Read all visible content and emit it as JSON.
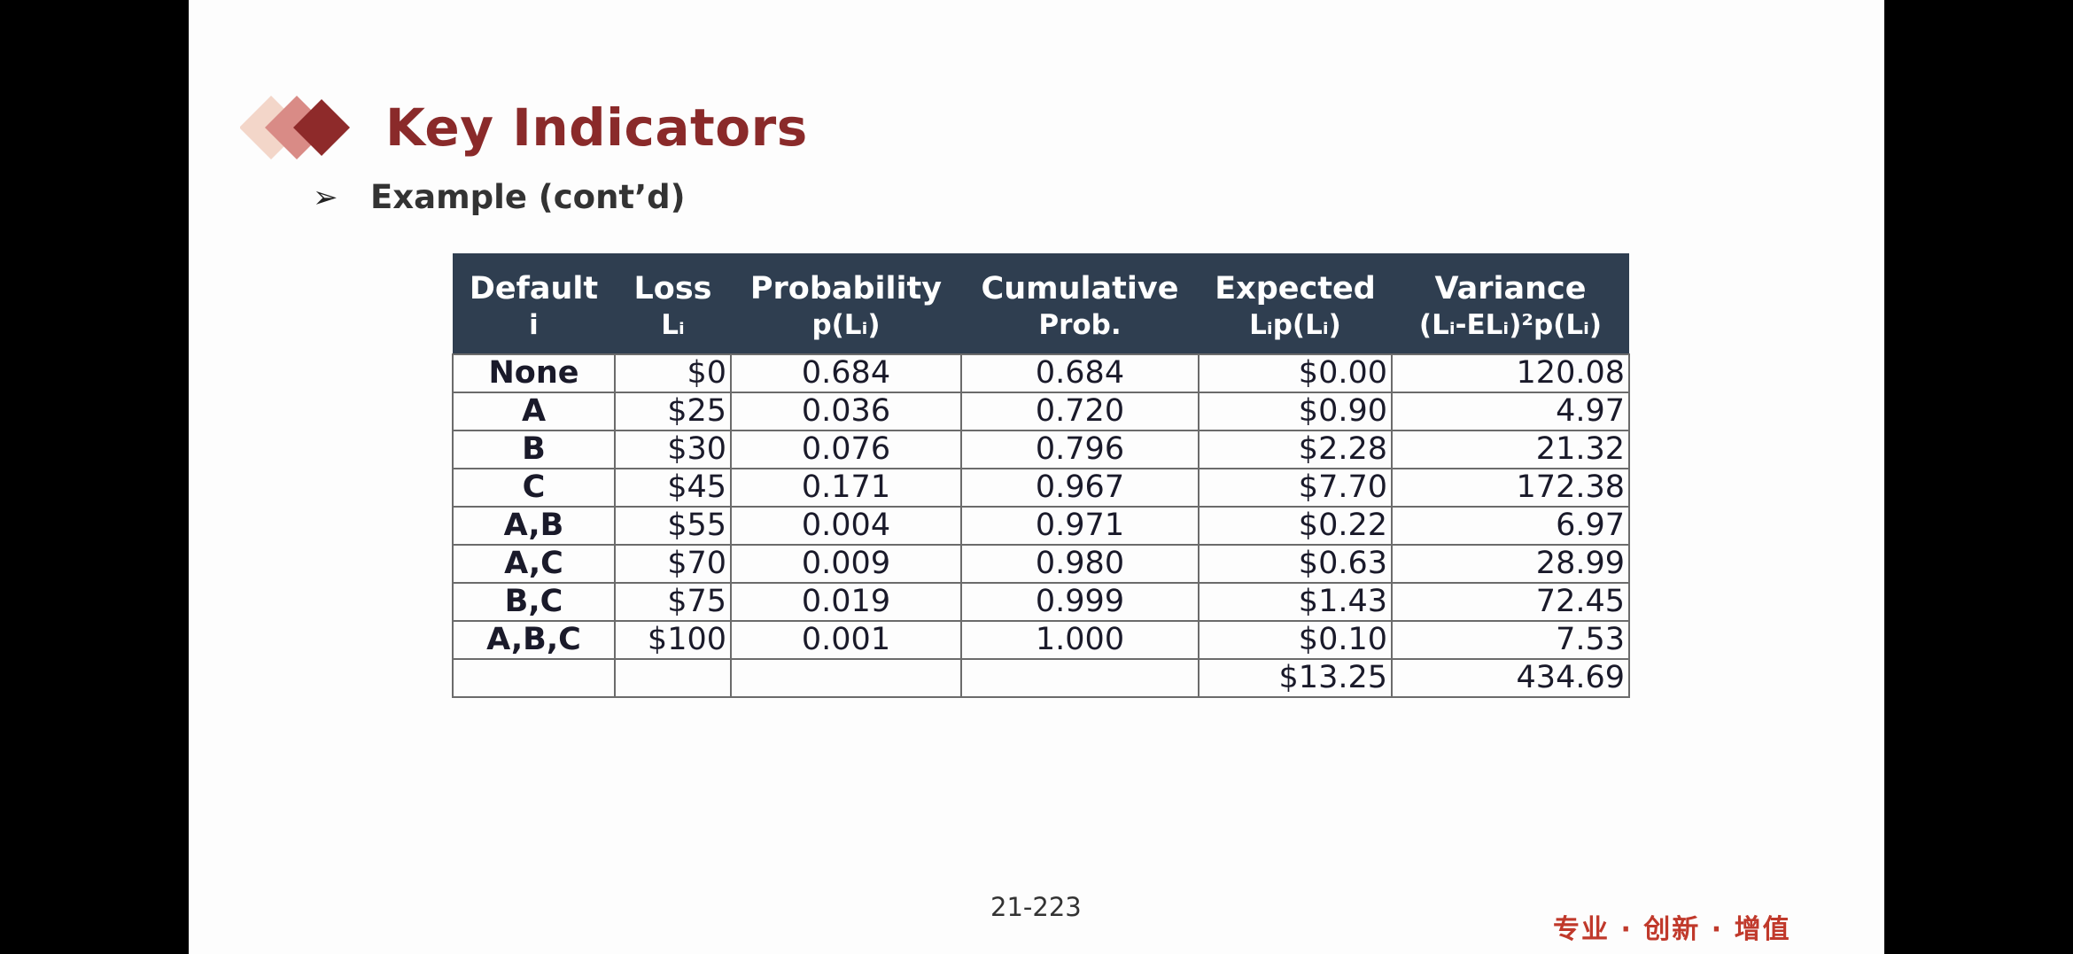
{
  "slide": {
    "title": "Key Indicators",
    "bullet_symbol": "➢",
    "subtitle": "Example (cont’d)",
    "page_number": "21-223",
    "footer_tag": "专业 · 创新 · 增值"
  },
  "colors": {
    "title": "#8a2a2a",
    "header_bg": "#2f3e50",
    "footer_tag": "#c0392b",
    "logo_diamonds": [
      "#f3d6c9",
      "#d98b86",
      "#8e2a2a"
    ]
  },
  "table": {
    "headers": [
      {
        "line1": "Default",
        "line2": "i"
      },
      {
        "line1": "Loss",
        "line2": "Lᵢ"
      },
      {
        "line1": "Probability",
        "line2": "p(Lᵢ)"
      },
      {
        "line1": "Cumulative",
        "line2": "Prob."
      },
      {
        "line1": "Expected",
        "line2": "Lᵢp(Lᵢ)"
      },
      {
        "line1": "Variance",
        "line2": "(Lᵢ-ELᵢ)²p(Lᵢ)"
      }
    ],
    "rows": [
      [
        "None",
        "$0",
        "0.684",
        "0.684",
        "$0.00",
        "120.08"
      ],
      [
        "A",
        "$25",
        "0.036",
        "0.720",
        "$0.90",
        "4.97"
      ],
      [
        "B",
        "$30",
        "0.076",
        "0.796",
        "$2.28",
        "21.32"
      ],
      [
        "C",
        "$45",
        "0.171",
        "0.967",
        "$7.70",
        "172.38"
      ],
      [
        "A,B",
        "$55",
        "0.004",
        "0.971",
        "$0.22",
        "6.97"
      ],
      [
        "A,C",
        "$70",
        "0.009",
        "0.980",
        "$0.63",
        "28.99"
      ],
      [
        "B,C",
        "$75",
        "0.019",
        "0.999",
        "$1.43",
        "72.45"
      ],
      [
        "A,B,C",
        "$100",
        "0.001",
        "1.000",
        "$0.10",
        "7.53"
      ],
      [
        "",
        "",
        "",
        "",
        "$13.25",
        "434.69"
      ]
    ]
  }
}
